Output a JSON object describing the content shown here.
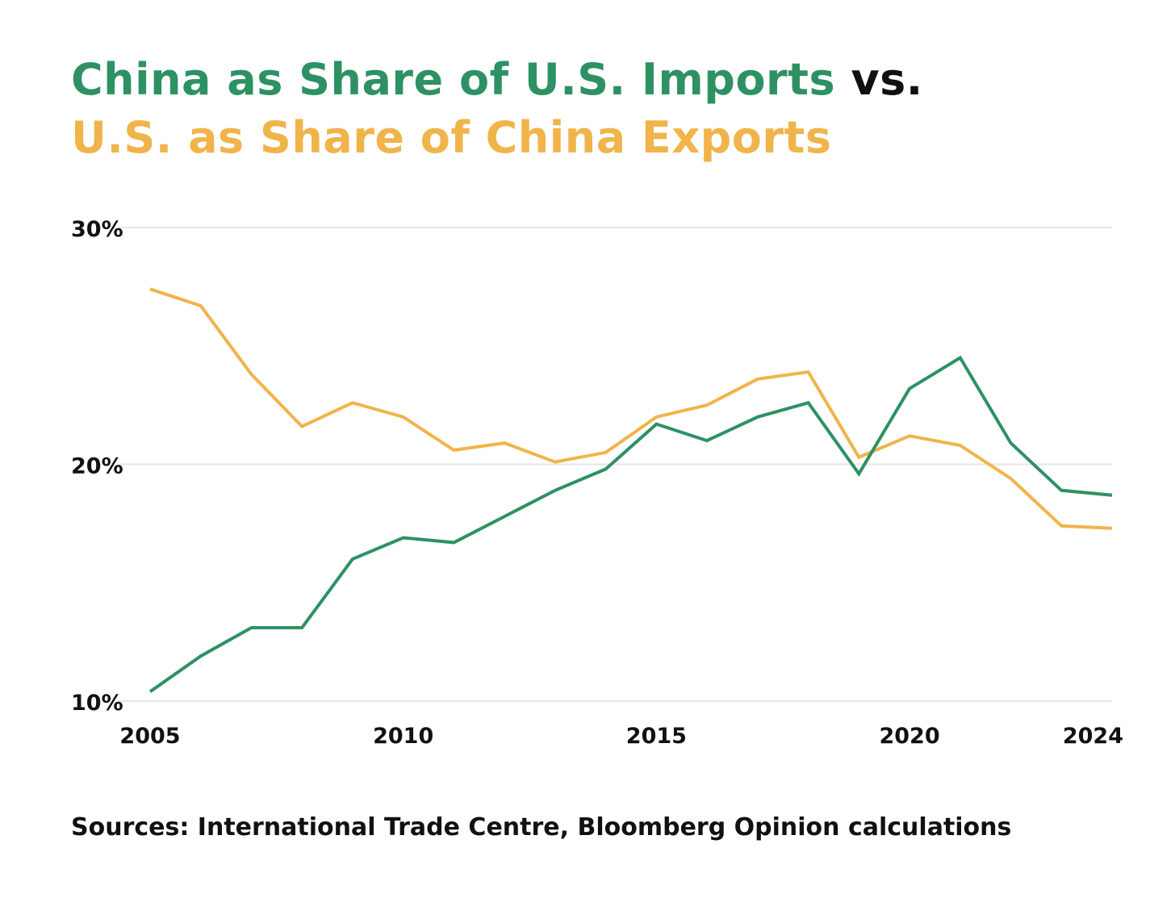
{
  "title": {
    "part1": "China as Share of U.S. Imports",
    "part2": " vs.",
    "line2": "U.S. as Share of China Exports"
  },
  "colors": {
    "green": "#2e9163",
    "yellow": "#f0b44a",
    "text": "#111111",
    "grid": "#e5e5e5"
  },
  "chart_data": {
    "type": "line",
    "title": "China as Share of U.S. Imports vs. U.S. as Share of China Exports",
    "xlabel": "",
    "ylabel": "",
    "x": [
      2005,
      2006,
      2007,
      2008,
      2009,
      2010,
      2011,
      2012,
      2013,
      2014,
      2015,
      2016,
      2017,
      2018,
      2019,
      2020,
      2021,
      2022,
      2023,
      2024
    ],
    "xlim": [
      2005,
      2024
    ],
    "ylim": [
      10,
      30
    ],
    "grid": true,
    "x_ticks": [
      {
        "value": 2005,
        "label": "2005"
      },
      {
        "value": 2010,
        "label": "2010"
      },
      {
        "value": 2015,
        "label": "2015"
      },
      {
        "value": 2020,
        "label": "2020"
      },
      {
        "value": 2024,
        "label": "2024"
      }
    ],
    "y_ticks": [
      {
        "value": 30,
        "label": "30%"
      },
      {
        "value": 20,
        "label": "20%"
      },
      {
        "value": 10,
        "label": "10%"
      }
    ],
    "series": [
      {
        "name": "China as Share of U.S. Imports",
        "color": "#2e9163",
        "values": [
          10.4,
          11.9,
          13.1,
          13.1,
          16.0,
          16.9,
          16.7,
          17.8,
          18.9,
          19.8,
          21.7,
          21.0,
          22.0,
          22.6,
          19.6,
          23.2,
          24.5,
          20.9,
          18.9,
          18.7
        ]
      },
      {
        "name": "U.S. as Share of China Exports",
        "color": "#f0b44a",
        "values": [
          27.4,
          26.7,
          23.8,
          21.6,
          22.6,
          22.0,
          20.6,
          20.9,
          20.1,
          20.5,
          22.0,
          22.5,
          23.6,
          23.9,
          20.3,
          21.2,
          20.8,
          19.4,
          17.4,
          17.3
        ]
      }
    ]
  },
  "source": "Sources: International Trade Centre, Bloomberg Opinion calculations"
}
